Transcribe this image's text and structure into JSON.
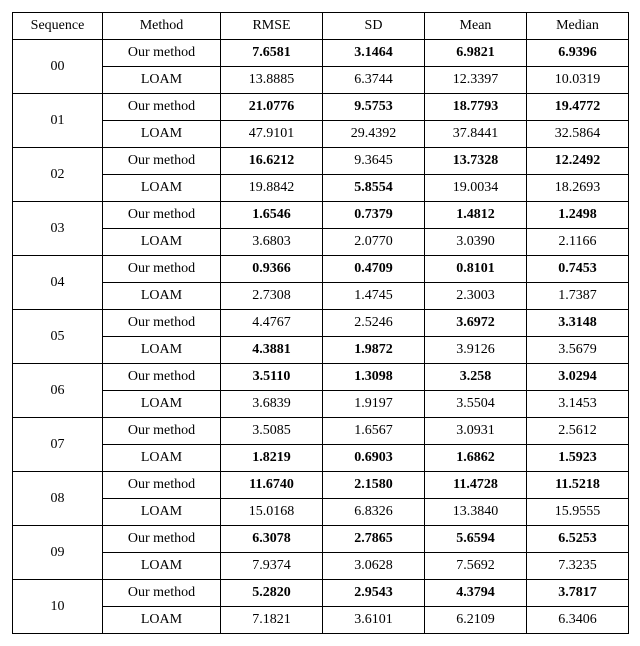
{
  "headers": {
    "sequence": "Sequence",
    "method": "Method",
    "rmse": "RMSE",
    "sd": "SD",
    "mean": "Mean",
    "median": "Median"
  },
  "method_labels": {
    "ours": "Our method",
    "loam": "LOAM"
  },
  "rows": [
    {
      "seq": "00",
      "ours": {
        "rmse": {
          "v": "7.6581",
          "b": true
        },
        "sd": {
          "v": "3.1464",
          "b": true
        },
        "mean": {
          "v": "6.9821",
          "b": true
        },
        "median": {
          "v": "6.9396",
          "b": true
        }
      },
      "loam": {
        "rmse": {
          "v": "13.8885",
          "b": false
        },
        "sd": {
          "v": "6.3744",
          "b": false
        },
        "mean": {
          "v": "12.3397",
          "b": false
        },
        "median": {
          "v": "10.0319",
          "b": false
        }
      }
    },
    {
      "seq": "01",
      "ours": {
        "rmse": {
          "v": "21.0776",
          "b": true
        },
        "sd": {
          "v": "9.5753",
          "b": true
        },
        "mean": {
          "v": "18.7793",
          "b": true
        },
        "median": {
          "v": "19.4772",
          "b": true
        }
      },
      "loam": {
        "rmse": {
          "v": "47.9101",
          "b": false
        },
        "sd": {
          "v": "29.4392",
          "b": false
        },
        "mean": {
          "v": "37.8441",
          "b": false
        },
        "median": {
          "v": "32.5864",
          "b": false
        }
      }
    },
    {
      "seq": "02",
      "ours": {
        "rmse": {
          "v": "16.6212",
          "b": true
        },
        "sd": {
          "v": "9.3645",
          "b": false
        },
        "mean": {
          "v": "13.7328",
          "b": true
        },
        "median": {
          "v": "12.2492",
          "b": true
        }
      },
      "loam": {
        "rmse": {
          "v": "19.8842",
          "b": false
        },
        "sd": {
          "v": "5.8554",
          "b": true
        },
        "mean": {
          "v": "19.0034",
          "b": false
        },
        "median": {
          "v": "18.2693",
          "b": false
        }
      }
    },
    {
      "seq": "03",
      "ours": {
        "rmse": {
          "v": "1.6546",
          "b": true
        },
        "sd": {
          "v": "0.7379",
          "b": true
        },
        "mean": {
          "v": "1.4812",
          "b": true
        },
        "median": {
          "v": "1.2498",
          "b": true
        }
      },
      "loam": {
        "rmse": {
          "v": "3.6803",
          "b": false
        },
        "sd": {
          "v": "2.0770",
          "b": false
        },
        "mean": {
          "v": "3.0390",
          "b": false
        },
        "median": {
          "v": "2.1166",
          "b": false
        }
      }
    },
    {
      "seq": "04",
      "ours": {
        "rmse": {
          "v": "0.9366",
          "b": true
        },
        "sd": {
          "v": "0.4709",
          "b": true
        },
        "mean": {
          "v": "0.8101",
          "b": true
        },
        "median": {
          "v": "0.7453",
          "b": true
        }
      },
      "loam": {
        "rmse": {
          "v": "2.7308",
          "b": false
        },
        "sd": {
          "v": "1.4745",
          "b": false
        },
        "mean": {
          "v": "2.3003",
          "b": false
        },
        "median": {
          "v": "1.7387",
          "b": false
        }
      }
    },
    {
      "seq": "05",
      "ours": {
        "rmse": {
          "v": "4.4767",
          "b": false
        },
        "sd": {
          "v": "2.5246",
          "b": false
        },
        "mean": {
          "v": "3.6972",
          "b": true
        },
        "median": {
          "v": "3.3148",
          "b": true
        }
      },
      "loam": {
        "rmse": {
          "v": "4.3881",
          "b": true
        },
        "sd": {
          "v": "1.9872",
          "b": true
        },
        "mean": {
          "v": "3.9126",
          "b": false
        },
        "median": {
          "v": "3.5679",
          "b": false
        }
      }
    },
    {
      "seq": "06",
      "ours": {
        "rmse": {
          "v": "3.5110",
          "b": true
        },
        "sd": {
          "v": "1.3098",
          "b": true
        },
        "mean": {
          "v": "3.258",
          "b": true
        },
        "median": {
          "v": "3.0294",
          "b": true
        }
      },
      "loam": {
        "rmse": {
          "v": "3.6839",
          "b": false
        },
        "sd": {
          "v": "1.9197",
          "b": false
        },
        "mean": {
          "v": "3.5504",
          "b": false
        },
        "median": {
          "v": "3.1453",
          "b": false
        }
      }
    },
    {
      "seq": "07",
      "ours": {
        "rmse": {
          "v": "3.5085",
          "b": false
        },
        "sd": {
          "v": "1.6567",
          "b": false
        },
        "mean": {
          "v": "3.0931",
          "b": false
        },
        "median": {
          "v": "2.5612",
          "b": false
        }
      },
      "loam": {
        "rmse": {
          "v": "1.8219",
          "b": true
        },
        "sd": {
          "v": "0.6903",
          "b": true
        },
        "mean": {
          "v": "1.6862",
          "b": true
        },
        "median": {
          "v": "1.5923",
          "b": true
        }
      }
    },
    {
      "seq": "08",
      "ours": {
        "rmse": {
          "v": "11.6740",
          "b": true
        },
        "sd": {
          "v": "2.1580",
          "b": true
        },
        "mean": {
          "v": "11.4728",
          "b": true
        },
        "median": {
          "v": "11.5218",
          "b": true
        }
      },
      "loam": {
        "rmse": {
          "v": "15.0168",
          "b": false
        },
        "sd": {
          "v": "6.8326",
          "b": false
        },
        "mean": {
          "v": "13.3840",
          "b": false
        },
        "median": {
          "v": "15.9555",
          "b": false
        }
      }
    },
    {
      "seq": "09",
      "ours": {
        "rmse": {
          "v": "6.3078",
          "b": true
        },
        "sd": {
          "v": "2.7865",
          "b": true
        },
        "mean": {
          "v": "5.6594",
          "b": true
        },
        "median": {
          "v": "6.5253",
          "b": true
        }
      },
      "loam": {
        "rmse": {
          "v": "7.9374",
          "b": false
        },
        "sd": {
          "v": "3.0628",
          "b": false
        },
        "mean": {
          "v": "7.5692",
          "b": false
        },
        "median": {
          "v": "7.3235",
          "b": false
        }
      }
    },
    {
      "seq": "10",
      "ours": {
        "rmse": {
          "v": "5.2820",
          "b": true
        },
        "sd": {
          "v": "2.9543",
          "b": true
        },
        "mean": {
          "v": "4.3794",
          "b": true
        },
        "median": {
          "v": "3.7817",
          "b": true
        }
      },
      "loam": {
        "rmse": {
          "v": "7.1821",
          "b": false
        },
        "sd": {
          "v": "3.6101",
          "b": false
        },
        "mean": {
          "v": "6.2109",
          "b": false
        },
        "median": {
          "v": "6.3406",
          "b": false
        }
      }
    }
  ]
}
